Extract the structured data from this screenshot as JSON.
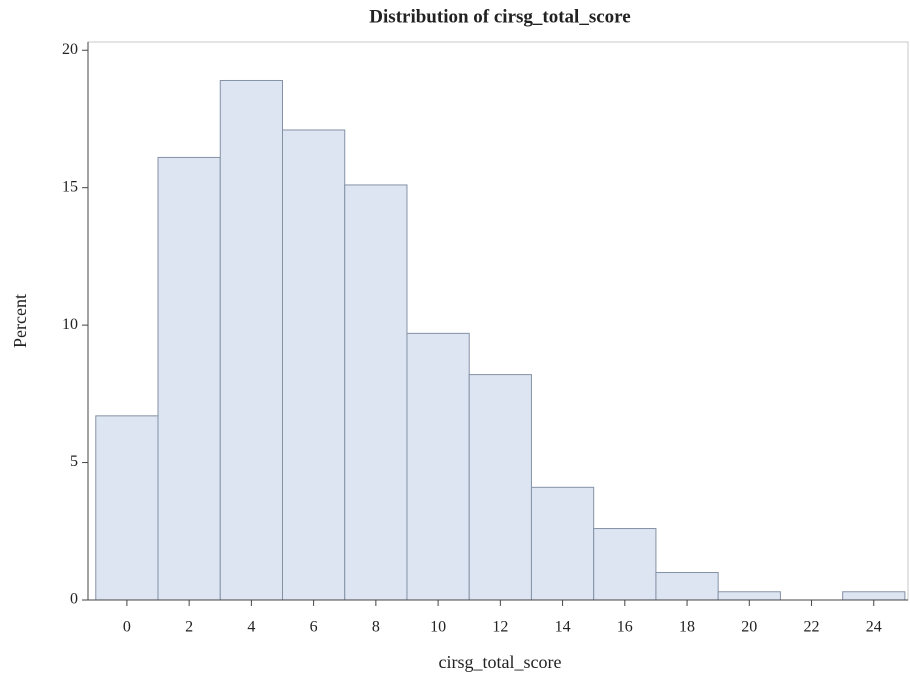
{
  "chart_data": {
    "type": "histogram",
    "title": "Distribution of cirsg_total_score",
    "x_label": "cirsg_total_score",
    "y_label": "Percent",
    "bins": [
      -1,
      1,
      3,
      5,
      7,
      9,
      11,
      13,
      15,
      17,
      19,
      21,
      23,
      25
    ],
    "values": [
      6.7,
      16.1,
      18.9,
      17.1,
      15.1,
      9.7,
      8.2,
      4.1,
      2.6,
      1.0,
      0.3,
      0,
      0.3
    ],
    "color": "#dce5f1",
    "edge_color": "#8592a6",
    "xlim": [
      -1.25,
      25.1
    ],
    "ylim": [
      0,
      20.3
    ],
    "xticks": [
      0,
      2,
      4,
      6,
      8,
      10,
      12,
      14,
      16,
      18,
      20,
      22,
      24
    ],
    "yticks": [
      0,
      5,
      10,
      15,
      20
    ]
  }
}
